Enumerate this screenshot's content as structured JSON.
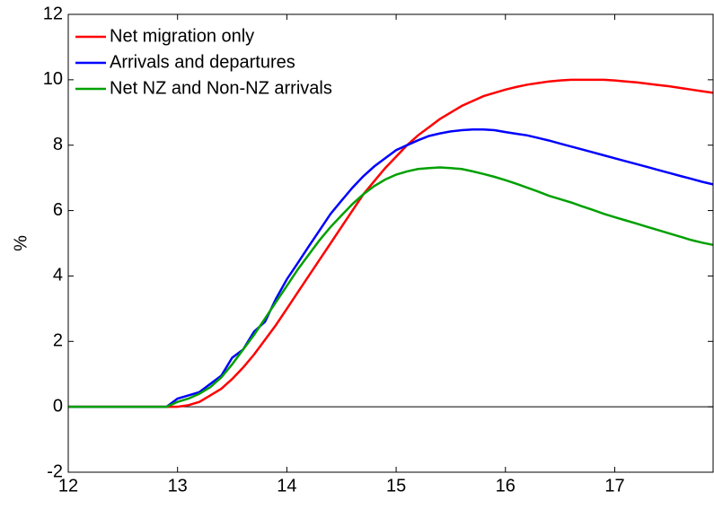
{
  "chart_data": {
    "type": "line",
    "ylabel": "%",
    "x": [
      12,
      12.9,
      13.0,
      13.1,
      13.2,
      13.3,
      13.4,
      13.5,
      13.6,
      13.7,
      13.8,
      13.9,
      14.0,
      14.1,
      14.2,
      14.3,
      14.4,
      14.5,
      14.6,
      14.7,
      14.8,
      14.9,
      15.0,
      15.1,
      15.2,
      15.3,
      15.4,
      15.5,
      15.6,
      15.7,
      15.8,
      15.9,
      16.0,
      16.1,
      16.2,
      16.3,
      16.4,
      16.5,
      16.6,
      16.7,
      16.8,
      16.9,
      17.0,
      17.1,
      17.2,
      17.3,
      17.4,
      17.5,
      17.6,
      17.7,
      17.8,
      17.9
    ],
    "series": [
      {
        "name": "Net migration only",
        "color": "#ff0000",
        "values": [
          0,
          0,
          0,
          0.05,
          0.15,
          0.35,
          0.55,
          0.85,
          1.2,
          1.6,
          2.05,
          2.5,
          3.0,
          3.5,
          4.0,
          4.5,
          5.0,
          5.5,
          6.0,
          6.5,
          6.9,
          7.3,
          7.65,
          8.0,
          8.3,
          8.55,
          8.8,
          9.0,
          9.2,
          9.35,
          9.5,
          9.6,
          9.7,
          9.78,
          9.85,
          9.9,
          9.95,
          9.98,
          10.0,
          10.0,
          10.0,
          10.0,
          9.98,
          9.95,
          9.92,
          9.88,
          9.84,
          9.8,
          9.75,
          9.7,
          9.65,
          9.6
        ]
      },
      {
        "name": "Arrivals and departures",
        "color": "#0000ff",
        "values": [
          0,
          0,
          0.25,
          0.35,
          0.45,
          0.7,
          0.95,
          1.5,
          1.75,
          2.3,
          2.6,
          3.3,
          3.9,
          4.4,
          4.9,
          5.4,
          5.9,
          6.3,
          6.7,
          7.05,
          7.35,
          7.6,
          7.85,
          8.0,
          8.15,
          8.28,
          8.36,
          8.42,
          8.46,
          8.48,
          8.48,
          8.46,
          8.4,
          8.35,
          8.3,
          8.22,
          8.14,
          8.05,
          7.96,
          7.87,
          7.78,
          7.69,
          7.6,
          7.51,
          7.42,
          7.33,
          7.24,
          7.15,
          7.06,
          6.97,
          6.88,
          6.8
        ]
      },
      {
        "name": "Net NZ and Non-NZ arrivals",
        "color": "#00a000",
        "values": [
          0,
          0,
          0.15,
          0.25,
          0.4,
          0.6,
          0.9,
          1.3,
          1.75,
          2.2,
          2.7,
          3.2,
          3.7,
          4.2,
          4.65,
          5.1,
          5.5,
          5.85,
          6.2,
          6.5,
          6.75,
          6.95,
          7.1,
          7.2,
          7.27,
          7.3,
          7.32,
          7.3,
          7.27,
          7.2,
          7.12,
          7.03,
          6.93,
          6.82,
          6.7,
          6.58,
          6.45,
          6.35,
          6.25,
          6.13,
          6.02,
          5.9,
          5.8,
          5.7,
          5.6,
          5.5,
          5.4,
          5.3,
          5.2,
          5.1,
          5.02,
          4.95
        ]
      }
    ],
    "xlim": [
      12,
      17.9
    ],
    "xticks": [
      12,
      13,
      14,
      15,
      16,
      17
    ],
    "ylim": [
      -2,
      12
    ],
    "yticks": [
      -2,
      0,
      2,
      4,
      6,
      8,
      10,
      12
    ],
    "zero_line": true,
    "legend": "upper left"
  }
}
